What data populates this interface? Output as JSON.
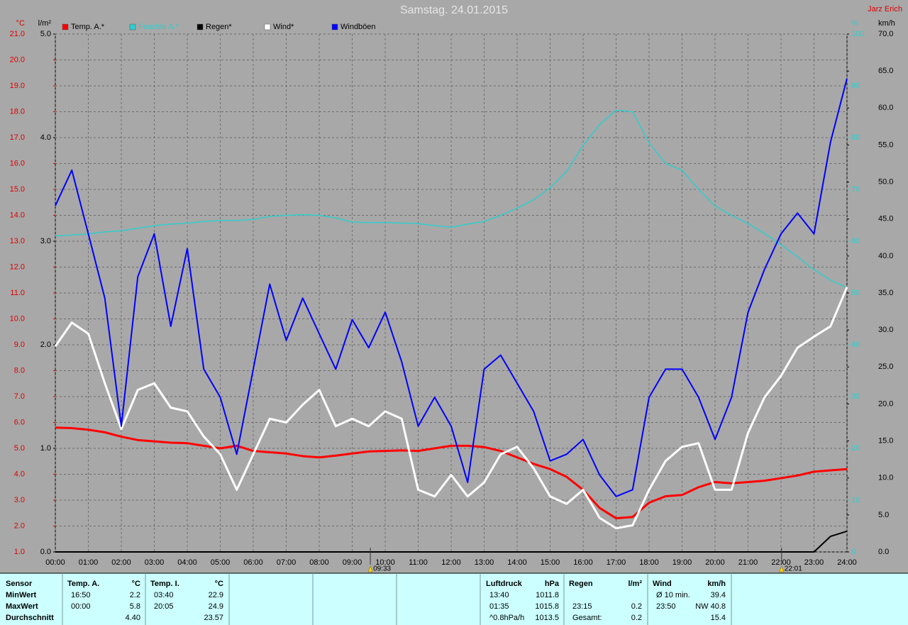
{
  "chart_data": {
    "type": "line",
    "title": "Samstag. 24.01.2015",
    "author": "Jarz Erich",
    "grid": true,
    "x": [
      0,
      0.5,
      1,
      1.5,
      2,
      2.5,
      3,
      3.5,
      4,
      4.5,
      5,
      5.5,
      6,
      6.5,
      7,
      7.5,
      8,
      8.5,
      9,
      9.5,
      10,
      10.5,
      11,
      11.5,
      12,
      12.5,
      13,
      13.5,
      14,
      14.5,
      15,
      15.5,
      16,
      16.5,
      17,
      17.5,
      18,
      18.5,
      19,
      19.5,
      20,
      20.5,
      21,
      21.5,
      22,
      22.5,
      23,
      23.5,
      24
    ],
    "xlim": [
      0,
      24
    ],
    "xticks": [
      {
        "value": 0,
        "label": "00:00"
      },
      {
        "value": 1,
        "label": "01:00"
      },
      {
        "value": 2,
        "label": "02:00"
      },
      {
        "value": 3,
        "label": "03:00"
      },
      {
        "value": 4,
        "label": "04:00"
      },
      {
        "value": 5,
        "label": "05:00"
      },
      {
        "value": 6,
        "label": "06:00"
      },
      {
        "value": 7,
        "label": "07:00"
      },
      {
        "value": 8,
        "label": "08:00"
      },
      {
        "value": 9,
        "label": "09:00"
      },
      {
        "value": 10,
        "label": "10:00"
      },
      {
        "value": 11,
        "label": "11:00"
      },
      {
        "value": 12,
        "label": "12:00"
      },
      {
        "value": 13,
        "label": "13:00"
      },
      {
        "value": 14,
        "label": "14:00"
      },
      {
        "value": 15,
        "label": "15:00"
      },
      {
        "value": 16,
        "label": "16:00"
      },
      {
        "value": 17,
        "label": "17:00"
      },
      {
        "value": 18,
        "label": "18:00"
      },
      {
        "value": 19,
        "label": "19:00"
      },
      {
        "value": 20,
        "label": "20:00"
      },
      {
        "value": 21,
        "label": "21:00"
      },
      {
        "value": 22,
        "label": "22:00"
      },
      {
        "value": 23,
        "label": "23:00"
      },
      {
        "value": 24,
        "label": "24:00"
      }
    ],
    "axes": [
      {
        "label": "°C",
        "side": "left",
        "color": "#e00000",
        "lim": [
          1,
          21
        ],
        "ticks": [
          {
            "value": 1,
            "label": "1.0"
          },
          {
            "value": 2,
            "label": "2.0"
          },
          {
            "value": 3,
            "label": "3.0"
          },
          {
            "value": 4,
            "label": "4.0"
          },
          {
            "value": 5,
            "label": "5.0"
          },
          {
            "value": 6,
            "label": "6.0"
          },
          {
            "value": 7,
            "label": "7.0"
          },
          {
            "value": 8,
            "label": "8.0"
          },
          {
            "value": 9,
            "label": "9.0"
          },
          {
            "value": 10,
            "label": "10.0"
          },
          {
            "value": 11,
            "label": "11.0"
          },
          {
            "value": 12,
            "label": "12.0"
          },
          {
            "value": 13,
            "label": "13.0"
          },
          {
            "value": 14,
            "label": "14.0"
          },
          {
            "value": 15,
            "label": "15.0"
          },
          {
            "value": 16,
            "label": "16.0"
          },
          {
            "value": 17,
            "label": "17.0"
          },
          {
            "value": 18,
            "label": "18.0"
          },
          {
            "value": 19,
            "label": "19.0"
          },
          {
            "value": 20,
            "label": "20.0"
          },
          {
            "value": 21,
            "label": "21.0"
          }
        ]
      },
      {
        "label": "l/m²",
        "side": "left",
        "color": "#000000",
        "lim": [
          0,
          5
        ],
        "ticks": [
          {
            "value": 0,
            "label": "0.0"
          },
          {
            "value": 1,
            "label": "1.0"
          },
          {
            "value": 2,
            "label": "2.0"
          },
          {
            "value": 3,
            "label": "3.0"
          },
          {
            "value": 4,
            "label": "4.0"
          },
          {
            "value": 5,
            "label": "5.0"
          }
        ]
      },
      {
        "label": "%",
        "side": "right",
        "color": "#33cccc",
        "lim": [
          0,
          100
        ],
        "ticks": [
          0,
          10,
          20,
          30,
          40,
          50,
          60,
          70,
          80,
          90,
          100
        ]
      },
      {
        "label": "km/h",
        "side": "right",
        "color": "#000000",
        "lim": [
          0,
          70
        ],
        "ticks": [
          {
            "value": 0,
            "label": "0.0"
          },
          {
            "value": 5,
            "label": "5.0"
          },
          {
            "value": 10,
            "label": "10.0"
          },
          {
            "value": 15,
            "label": "15.0"
          },
          {
            "value": 20,
            "label": "20.0"
          },
          {
            "value": 25,
            "label": "25.0"
          },
          {
            "value": 30,
            "label": "30.0"
          },
          {
            "value": 35,
            "label": "35.0"
          },
          {
            "value": 40,
            "label": "40.0"
          },
          {
            "value": 45,
            "label": "45.0"
          },
          {
            "value": 50,
            "label": "50.0"
          },
          {
            "value": 55,
            "label": "55.0"
          },
          {
            "value": 60,
            "label": "60.0"
          },
          {
            "value": 65,
            "label": "65.0"
          },
          {
            "value": 70,
            "label": "70.0"
          }
        ]
      }
    ],
    "series": [
      {
        "name": "Temp. A.*",
        "color": "#ff0000",
        "axis": 0,
        "width": 3,
        "values": [
          5.8,
          5.78,
          5.72,
          5.62,
          5.45,
          5.32,
          5.27,
          5.22,
          5.2,
          5.1,
          5.0,
          5.1,
          4.9,
          4.85,
          4.8,
          4.7,
          4.65,
          4.72,
          4.8,
          4.88,
          4.9,
          4.92,
          4.9,
          5.0,
          5.1,
          5.1,
          5.05,
          4.9,
          4.65,
          4.4,
          4.2,
          3.9,
          3.4,
          2.7,
          2.3,
          2.35,
          2.9,
          3.15,
          3.2,
          3.5,
          3.7,
          3.65,
          3.7,
          3.75,
          3.85,
          3.95,
          4.1,
          4.15,
          4.2
        ]
      },
      {
        "name": "Feuchte A.*",
        "color": "#33cccc",
        "axis": 2,
        "width": 1.5,
        "values": [
          61,
          61.2,
          61.4,
          61.8,
          62,
          62.5,
          63,
          63.3,
          63.5,
          63.8,
          64,
          64,
          64.2,
          64.8,
          65,
          65.1,
          65,
          64.5,
          63.7,
          63.6,
          63.6,
          63.5,
          63.4,
          63,
          62.7,
          63.3,
          63.8,
          65,
          66.4,
          68,
          70.3,
          73.5,
          78.5,
          82.5,
          85.3,
          85,
          79,
          75,
          73.7,
          70,
          66.8,
          65,
          63.4,
          61.5,
          59.3,
          57,
          54.5,
          52.5,
          51
        ]
      },
      {
        "name": "Regen*",
        "color": "#000000",
        "axis": 1,
        "width": 2,
        "values": [
          0,
          0,
          0,
          0,
          0,
          0,
          0,
          0,
          0,
          0,
          0,
          0,
          0,
          0,
          0,
          0,
          0,
          0,
          0,
          0,
          0,
          0,
          0,
          0,
          0,
          0,
          0,
          0,
          0,
          0,
          0,
          0,
          0,
          0,
          0,
          0,
          0,
          0,
          0,
          0,
          0,
          0,
          0,
          0,
          0,
          0,
          0,
          0.15,
          0.2
        ]
      },
      {
        "name": "Wind*",
        "color": "#ffffff",
        "axis": 3,
        "width": 3,
        "values": [
          27.8,
          31,
          29.5,
          22.8,
          16.6,
          21.9,
          22.8,
          19.5,
          19,
          15.6,
          13.2,
          8.4,
          13.2,
          18,
          17.5,
          19.9,
          21.9,
          17,
          18,
          17,
          19,
          18,
          8.4,
          7.5,
          10.4,
          7.5,
          9.4,
          13.2,
          14.2,
          11.3,
          7.5,
          6.5,
          8.4,
          4.6,
          3.2,
          3.6,
          8.4,
          12.3,
          14.2,
          14.7,
          8.4,
          8.4,
          16.1,
          20.9,
          23.8,
          27.6,
          29.1,
          30.5,
          35.8
        ]
      },
      {
        "name": "Windböen",
        "color": "#0000ff",
        "axis": 3,
        "width": 2,
        "values": [
          46.8,
          51.6,
          43,
          34.3,
          17,
          37.2,
          43,
          30.5,
          41,
          24.7,
          20.9,
          13.2,
          24.7,
          36.2,
          28.6,
          34.3,
          29.5,
          24.7,
          31.4,
          27.6,
          32.4,
          25.7,
          17,
          20.9,
          17,
          9.4,
          24.7,
          26.6,
          22.8,
          19,
          12.3,
          13.2,
          15.2,
          10.4,
          7.5,
          8.4,
          20.9,
          24.7,
          24.7,
          20.9,
          15.2,
          20.9,
          32.4,
          38.2,
          43,
          45.8,
          43,
          55.4,
          64
        ]
      }
    ],
    "annotations": [
      {
        "x": 9.55,
        "label": "09:33"
      },
      {
        "x": 22.017,
        "label": "22:01"
      }
    ]
  },
  "stats": {
    "row_labels": [
      "Sensor",
      "MinWert",
      "MaxWert",
      "Durchschnitt"
    ],
    "blocks": [
      {
        "name": "Temp. A.",
        "unit": "°C",
        "rows": [
          {
            "time": "16:50",
            "value": "2.2"
          },
          {
            "time": "00:00",
            "value": "5.8"
          },
          {
            "value": "4.40"
          }
        ]
      },
      {
        "name": "Temp. I.",
        "unit": "°C",
        "rows": [
          {
            "time": "03:40",
            "value": "22.9"
          },
          {
            "time": "20:05",
            "value": "24.9"
          },
          {
            "value": "23.57"
          }
        ]
      },
      {
        "name": "Luftdruck",
        "unit": "hPa",
        "rows": [
          {
            "time": "13:40",
            "value": "1011.8"
          },
          {
            "time": "01:35",
            "value": "1015.8"
          },
          {
            "time": "^0.8hPa/h",
            "value": "1013.5"
          }
        ]
      },
      {
        "name": "Regen",
        "unit": "l/m²",
        "rows": [
          null,
          {
            "time": "23:15",
            "value": "0.2"
          },
          {
            "time": "Gesamt:",
            "value": "0.2"
          }
        ]
      },
      {
        "name": "Wind",
        "unit": "km/h",
        "rows": [
          {
            "time": "Ø 10 min.",
            "value": "39.4"
          },
          {
            "time": "23:50",
            "value": "NW 40.8"
          },
          {
            "value": "15.4"
          }
        ]
      }
    ]
  }
}
